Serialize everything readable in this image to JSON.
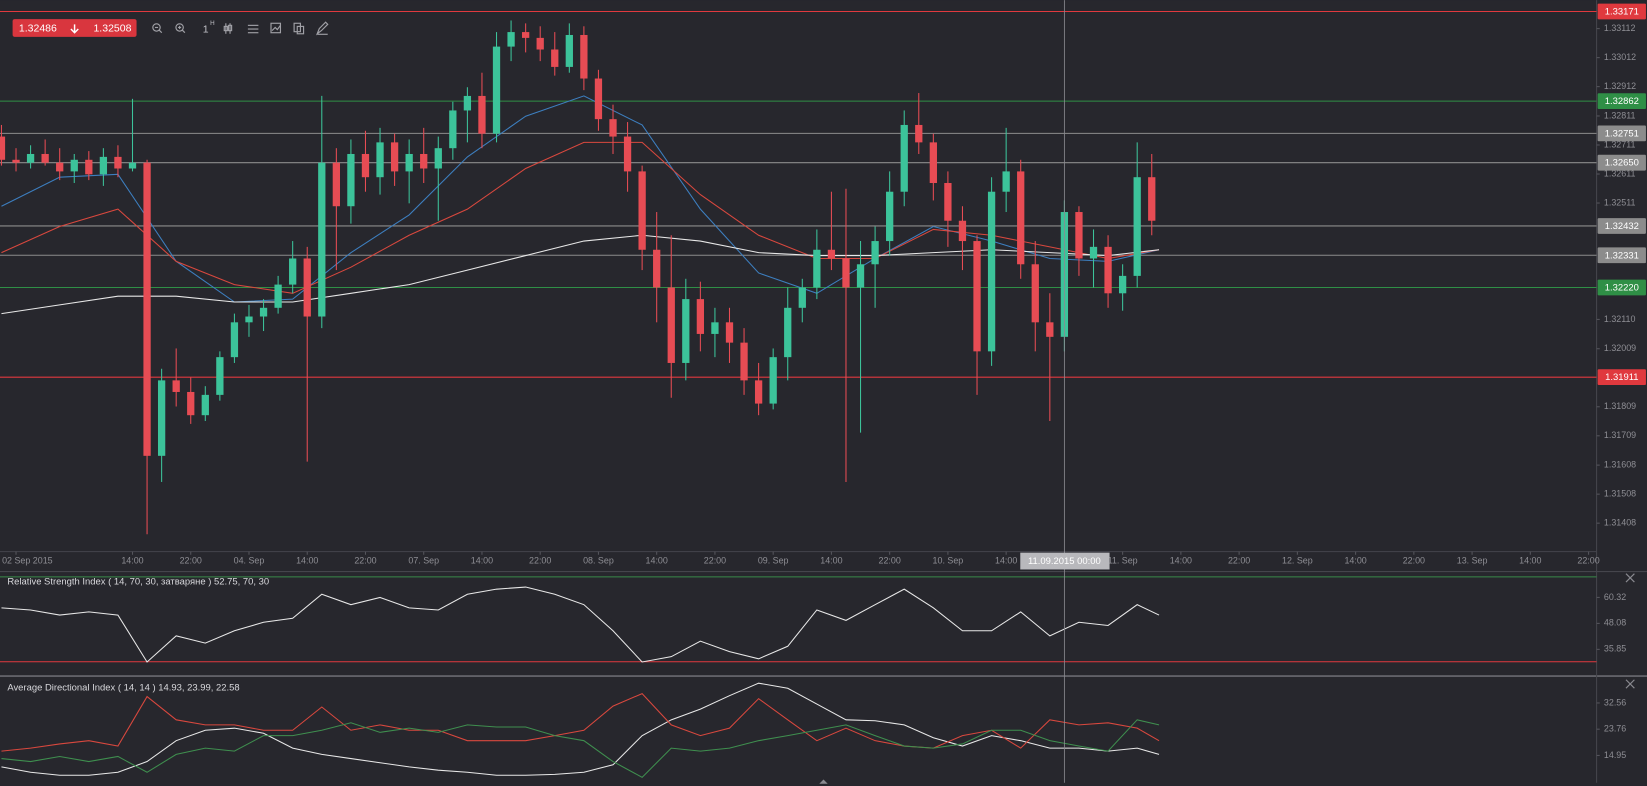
{
  "quote": {
    "bid": "1.32486",
    "ask": "1.32508"
  },
  "toolbar": {
    "interval": "1",
    "interval_unit": "H"
  },
  "crosshair": {
    "x": 128,
    "label": "11.09.2015 00:00"
  },
  "chart_data": [
    {
      "type": "candlestick",
      "up_color": "#3cc39a",
      "down_color": "#e74c54",
      "xlim": [
        -18.2,
        201.1
      ],
      "ylim": [
        1.3131,
        1.3321
      ],
      "xticks": [
        {
          "value": -16,
          "label": "02 Sep 2015"
        },
        {
          "value": 0,
          "label": "14:00"
        },
        {
          "value": 8,
          "label": "22:00"
        },
        {
          "value": 16,
          "label": "04. Sep"
        },
        {
          "value": 24,
          "label": "14:00"
        },
        {
          "value": 32,
          "label": "22:00"
        },
        {
          "value": 40,
          "label": "07. Sep"
        },
        {
          "value": 48,
          "label": "14:00"
        },
        {
          "value": 56,
          "label": "22:00"
        },
        {
          "value": 64,
          "label": "08. Sep"
        },
        {
          "value": 72,
          "label": "14:00"
        },
        {
          "value": 80,
          "label": "22:00"
        },
        {
          "value": 88,
          "label": "09. Sep"
        },
        {
          "value": 96,
          "label": "14:00"
        },
        {
          "value": 104,
          "label": "22:00"
        },
        {
          "value": 112,
          "label": "10. Sep"
        },
        {
          "value": 120,
          "label": "14:00"
        },
        {
          "value": 136,
          "label": "11. Sep"
        },
        {
          "value": 144,
          "label": "14:00"
        },
        {
          "value": 152,
          "label": "22:00"
        },
        {
          "value": 160,
          "label": "12. Sep"
        },
        {
          "value": 168,
          "label": "14:00"
        },
        {
          "value": 176,
          "label": "22:00"
        },
        {
          "value": 184,
          "label": "13. Sep"
        },
        {
          "value": 192,
          "label": "14:00"
        },
        {
          "value": 200,
          "label": "22:00"
        }
      ],
      "yticks": [
        1.33112,
        1.33012,
        1.32912,
        1.32811,
        1.32711,
        1.32611,
        1.32511,
        {
          "value": 1.3211,
          "label": "1.32110"
        },
        1.32009,
        1.31809,
        1.31709,
        1.31608,
        1.31508,
        1.31408
      ],
      "levels": [
        {
          "value": 1.33171,
          "color": "#e0393e"
        },
        {
          "value": 1.32862,
          "color": "#2f8f46"
        },
        {
          "value": 1.32751,
          "color": "#8c8c8c"
        },
        {
          "value": 1.3265,
          "label": "1.32650",
          "color": "#8c8c8c"
        },
        {
          "value": 1.32432,
          "color": "#8c8c8c"
        },
        {
          "value": 1.32331,
          "color": "#8c8c8c"
        },
        {
          "value": 1.3222,
          "label": "1.32220",
          "color": "#2f8f46"
        },
        {
          "value": 1.31911,
          "color": "#e0393e"
        }
      ],
      "x": [
        -18,
        -16,
        -14,
        -12,
        -10,
        -8,
        -6,
        -4,
        -2,
        0,
        2,
        4,
        6,
        8,
        10,
        12,
        14,
        16,
        18,
        20,
        22,
        24,
        26,
        28,
        30,
        32,
        34,
        36,
        38,
        40,
        42,
        44,
        46,
        48,
        50,
        52,
        54,
        56,
        58,
        60,
        62,
        64,
        66,
        68,
        70,
        72,
        74,
        76,
        78,
        80,
        82,
        84,
        86,
        88,
        90,
        92,
        94,
        96,
        98,
        100,
        102,
        104,
        106,
        108,
        110,
        112,
        114,
        116,
        118,
        120,
        122,
        124,
        126,
        128,
        130,
        132,
        134,
        136,
        138,
        140
      ],
      "open": [
        1.3274,
        1.3266,
        1.3265,
        1.3268,
        1.3265,
        1.3262,
        1.3266,
        1.3261,
        1.3267,
        1.3263,
        1.3265,
        1.3164,
        1.319,
        1.3186,
        1.3178,
        1.3185,
        1.3198,
        1.321,
        1.3212,
        1.3215,
        1.3223,
        1.3232,
        1.3212,
        1.3265,
        1.325,
        1.3268,
        1.326,
        1.3272,
        1.3262,
        1.3268,
        1.3263,
        1.327,
        1.3283,
        1.3288,
        1.3275,
        1.3305,
        1.331,
        1.3308,
        1.3304,
        1.3298,
        1.3309,
        1.3294,
        1.328,
        1.3274,
        1.3262,
        1.3235,
        1.3222,
        1.3196,
        1.3218,
        1.3206,
        1.321,
        1.3203,
        1.319,
        1.3182,
        1.3198,
        1.3215,
        1.3222,
        1.3235,
        1.3232,
        1.3222,
        1.323,
        1.3238,
        1.3255,
        1.3278,
        1.3272,
        1.3258,
        1.3245,
        1.3238,
        1.32,
        1.3255,
        1.3262,
        1.323,
        1.321,
        1.3205,
        1.3248,
        1.3232,
        1.3236,
        1.322,
        1.3226,
        1.326
      ],
      "high": [
        1.3278,
        1.327,
        1.3271,
        1.3273,
        1.327,
        1.3268,
        1.3269,
        1.327,
        1.3271,
        1.3287,
        1.3266,
        1.3194,
        1.3201,
        1.3191,
        1.3188,
        1.32,
        1.3213,
        1.3216,
        1.3218,
        1.3226,
        1.3238,
        1.3236,
        1.3288,
        1.327,
        1.3273,
        1.3276,
        1.3277,
        1.3275,
        1.3273,
        1.3277,
        1.3274,
        1.3286,
        1.3291,
        1.3296,
        1.331,
        1.3314,
        1.3313,
        1.3312,
        1.331,
        1.3313,
        1.3312,
        1.3297,
        1.3285,
        1.3279,
        1.3264,
        1.3248,
        1.324,
        1.3225,
        1.3224,
        1.3215,
        1.3215,
        1.3208,
        1.3196,
        1.3201,
        1.3222,
        1.3225,
        1.3242,
        1.3255,
        1.3256,
        1.3238,
        1.3243,
        1.3262,
        1.3283,
        1.3289,
        1.3275,
        1.3262,
        1.325,
        1.324,
        1.326,
        1.3277,
        1.3266,
        1.3238,
        1.322,
        1.3252,
        1.325,
        1.3242,
        1.324,
        1.323,
        1.3272,
        1.3268
      ],
      "low": [
        1.3264,
        1.3262,
        1.3263,
        1.3264,
        1.3259,
        1.3258,
        1.3259,
        1.3257,
        1.326,
        1.3262,
        1.3137,
        1.3155,
        1.3181,
        1.3175,
        1.3176,
        1.3183,
        1.3196,
        1.3205,
        1.3207,
        1.3213,
        1.322,
        1.3162,
        1.3208,
        1.3228,
        1.3244,
        1.3255,
        1.3254,
        1.3257,
        1.3251,
        1.3258,
        1.3245,
        1.3266,
        1.3272,
        1.327,
        1.3272,
        1.33,
        1.3303,
        1.33,
        1.3295,
        1.3296,
        1.329,
        1.3276,
        1.3268,
        1.3255,
        1.3228,
        1.321,
        1.3184,
        1.319,
        1.32,
        1.3198,
        1.3196,
        1.3185,
        1.3178,
        1.318,
        1.319,
        1.321,
        1.3218,
        1.3228,
        1.3155,
        1.3172,
        1.3215,
        1.3233,
        1.325,
        1.3268,
        1.3252,
        1.3236,
        1.3228,
        1.3185,
        1.3195,
        1.3248,
        1.3225,
        1.32,
        1.3176,
        1.32,
        1.3226,
        1.3222,
        1.3215,
        1.3214,
        1.3222,
        1.324
      ],
      "close": [
        1.3266,
        1.3265,
        1.3268,
        1.3265,
        1.3262,
        1.3266,
        1.3261,
        1.3267,
        1.3263,
        1.3265,
        1.3164,
        1.319,
        1.3186,
        1.3178,
        1.3185,
        1.3198,
        1.321,
        1.3212,
        1.3215,
        1.3223,
        1.3232,
        1.3212,
        1.3265,
        1.325,
        1.3268,
        1.326,
        1.3272,
        1.3262,
        1.3268,
        1.3263,
        1.327,
        1.3283,
        1.3288,
        1.3275,
        1.3305,
        1.331,
        1.3308,
        1.3304,
        1.3298,
        1.3309,
        1.3294,
        1.328,
        1.3274,
        1.3262,
        1.3235,
        1.3222,
        1.3196,
        1.3218,
        1.3206,
        1.321,
        1.3203,
        1.319,
        1.3182,
        1.3198,
        1.3215,
        1.3222,
        1.3235,
        1.3232,
        1.3222,
        1.323,
        1.3238,
        1.3255,
        1.3278,
        1.3272,
        1.3258,
        1.3245,
        1.3238,
        1.32,
        1.3255,
        1.3262,
        1.323,
        1.321,
        1.3205,
        1.3248,
        1.3232,
        1.3236,
        1.322,
        1.3226,
        1.326,
        1.3245
      ],
      "overlay_x": [
        -18,
        -10,
        -2,
        6,
        14,
        22,
        30,
        38,
        46,
        54,
        62,
        70,
        78,
        86,
        94,
        102,
        110,
        118,
        126,
        134,
        141
      ],
      "overlays": [
        {
          "color": "#3d7fc0",
          "values": [
            1.325,
            1.326,
            1.3261,
            1.3231,
            1.3217,
            1.3218,
            1.3234,
            1.3247,
            1.3267,
            1.3281,
            1.3288,
            1.3278,
            1.3249,
            1.3227,
            1.322,
            1.3232,
            1.3243,
            1.3238,
            1.3232,
            1.3231,
            1.3235
          ]
        },
        {
          "color": "#d9483e",
          "values": [
            1.3234,
            1.3243,
            1.3249,
            1.3231,
            1.3223,
            1.322,
            1.3229,
            1.324,
            1.3249,
            1.3263,
            1.3272,
            1.3272,
            1.3254,
            1.324,
            1.3232,
            1.3232,
            1.3242,
            1.324,
            1.3236,
            1.3232,
            1.3235
          ]
        },
        {
          "color": "#e8e8e8",
          "values": [
            1.3213,
            1.3216,
            1.3219,
            1.3219,
            1.3217,
            1.3217,
            1.322,
            1.3223,
            1.3228,
            1.3233,
            1.3238,
            1.324,
            1.3238,
            1.3234,
            1.3233,
            1.3233,
            1.3234,
            1.3235,
            1.3234,
            1.3233,
            1.3235
          ]
        }
      ]
    },
    {
      "type": "line",
      "title": "Relative Strength Index ( 14, 70, 30, затваряне ) 52.75, 70, 30",
      "xlim": [
        -18.2,
        201.1
      ],
      "ylim": [
        24,
        72
      ],
      "yticks": [
        60.32,
        48.08,
        35.85
      ],
      "levels": [
        {
          "value": 70,
          "color": "#3a8a4a"
        },
        {
          "value": 30,
          "color": "#e0393e"
        }
      ],
      "x": [
        -18,
        -14,
        -10,
        -6,
        -2,
        2,
        6,
        10,
        14,
        18,
        22,
        26,
        30,
        34,
        38,
        42,
        46,
        50,
        54,
        58,
        62,
        66,
        70,
        74,
        78,
        82,
        86,
        90,
        94,
        98,
        102,
        106,
        110,
        114,
        118,
        122,
        126,
        130,
        134,
        138,
        141
      ],
      "series": [
        {
          "color": "#e8e8e8",
          "values": [
            55.4,
            54.4,
            52.0,
            53.5,
            52.0,
            29.9,
            42.2,
            38.8,
            44.6,
            48.6,
            50.5,
            61.8,
            56.9,
            60.3,
            55.4,
            54.4,
            61.8,
            64.2,
            65.2,
            61.8,
            56.9,
            44.6,
            29.9,
            32.4,
            39.7,
            34.8,
            31.4,
            37.3,
            54.4,
            49.5,
            56.9,
            64.2,
            55.4,
            44.6,
            44.6,
            53.5,
            42.2,
            48.6,
            47.1,
            56.9,
            52.0
          ]
        }
      ]
    },
    {
      "type": "line",
      "title": "Average Directional Index ( 14, 14 ) 14.93, 23.99, 22.58",
      "xlim": [
        -18.2,
        201.1
      ],
      "ylim": [
        5.8,
        40.7
      ],
      "yticks": [
        32.56,
        23.76,
        14.95
      ],
      "x": [
        -18,
        -14,
        -10,
        -6,
        -2,
        2,
        6,
        10,
        14,
        18,
        22,
        26,
        30,
        34,
        38,
        42,
        46,
        50,
        54,
        58,
        62,
        66,
        70,
        74,
        78,
        82,
        86,
        90,
        94,
        98,
        102,
        106,
        110,
        114,
        118,
        122,
        126,
        130,
        134,
        138,
        141
      ],
      "series": [
        {
          "color": "#e8e8e8",
          "values": [
            11.1,
            9.3,
            8.3,
            8.3,
            9.3,
            12.9,
            19.9,
            23.4,
            24.1,
            22.4,
            17.4,
            15.3,
            13.9,
            12.5,
            11.1,
            10.0,
            9.3,
            8.3,
            8.3,
            8.6,
            9.3,
            11.8,
            21.6,
            26.9,
            30.5,
            35.0,
            39.2,
            37.5,
            32.2,
            26.9,
            26.6,
            25.2,
            20.9,
            18.1,
            21.6,
            19.9,
            17.4,
            17.4,
            16.4,
            17.4,
            15.3
          ]
        },
        {
          "color": "#d9483e",
          "values": [
            16.4,
            17.4,
            18.8,
            19.9,
            18.1,
            34.7,
            26.9,
            25.2,
            25.2,
            23.4,
            23.4,
            31.2,
            23.4,
            25.2,
            23.4,
            23.4,
            19.9,
            19.9,
            19.9,
            21.6,
            23.4,
            31.5,
            35.7,
            25.2,
            21.6,
            24.1,
            34.0,
            26.9,
            19.9,
            24.1,
            19.9,
            18.1,
            17.4,
            21.6,
            23.4,
            17.4,
            26.9,
            25.2,
            25.9,
            24.1,
            19.9
          ]
        },
        {
          "color": "#3f8f4f",
          "values": [
            13.9,
            12.9,
            14.6,
            12.9,
            14.6,
            9.3,
            15.3,
            17.4,
            16.4,
            21.6,
            21.6,
            23.4,
            25.9,
            22.7,
            24.1,
            22.7,
            25.2,
            24.5,
            24.5,
            21.6,
            19.9,
            12.9,
            7.6,
            17.4,
            16.4,
            17.4,
            19.9,
            21.6,
            23.4,
            25.2,
            21.6,
            18.1,
            17.4,
            18.8,
            23.4,
            23.4,
            19.9,
            18.1,
            16.4,
            26.9,
            25.2
          ]
        }
      ]
    }
  ]
}
